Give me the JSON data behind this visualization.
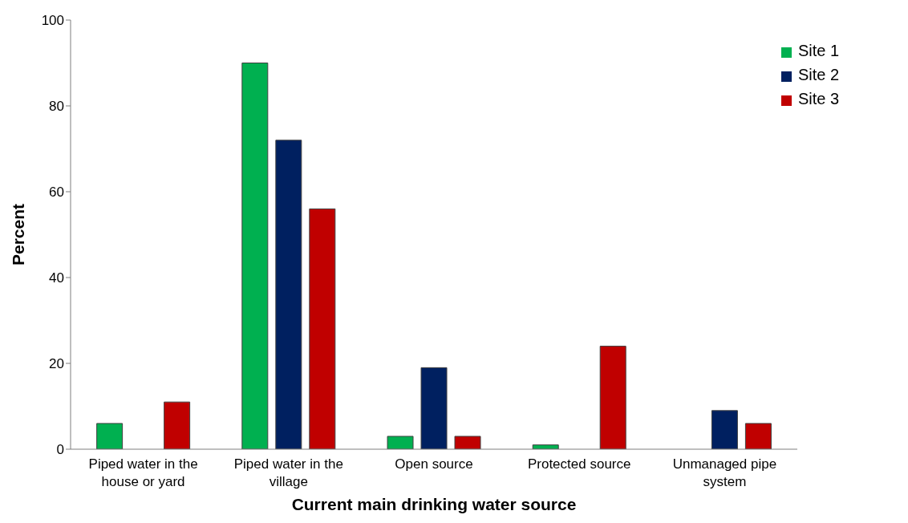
{
  "chart_data": {
    "type": "bar",
    "xlabel": "Current main drinking water source",
    "ylabel": "Percent",
    "categories": [
      "Piped water in the house or yard",
      "Piped water in the village",
      "Open source",
      "Protected source",
      "Unmanaged pipe system"
    ],
    "series": [
      {
        "name": "Site 1",
        "color": "#00b050",
        "values": [
          6,
          90,
          3,
          1,
          0
        ]
      },
      {
        "name": "Site 2",
        "color": "#002060",
        "values": [
          0,
          72,
          19,
          0,
          9
        ]
      },
      {
        "name": "Site 3",
        "color": "#c00000",
        "values": [
          11,
          56,
          3,
          24,
          6
        ]
      }
    ],
    "ylim": [
      0,
      100
    ],
    "yticks": [
      0,
      20,
      40,
      60,
      80,
      100
    ],
    "grid": false,
    "legend": "top right"
  }
}
